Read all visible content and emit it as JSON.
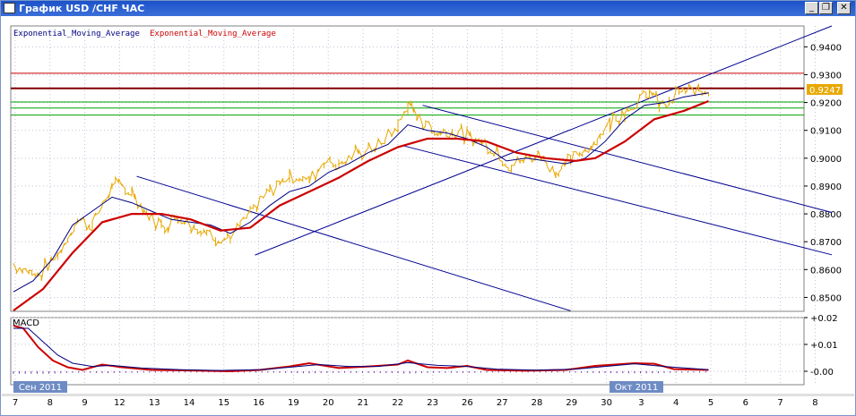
{
  "window": {
    "title": "График USD /CHF ЧАС",
    "buttons": {
      "minimize": "_",
      "restore": "❐",
      "close": "✕"
    }
  },
  "colors": {
    "price": "#e8a800",
    "ema_fast": "#000080",
    "ema_slow": "#cc0000",
    "resistance": "#cc0000",
    "current_line": "#800000",
    "support": "#00a000",
    "trendline": "#000090",
    "macd_histogram": "#7030a0",
    "price_tag_bg": "#e8a800",
    "date_tag_bg": "#6e8cc4"
  },
  "chart_data": [
    {
      "type": "line",
      "title": "",
      "legend": [
        "Exponential_Moving_Average",
        "Exponential_Moving_Average"
      ],
      "legend_placement": "top-left",
      "grid": true,
      "ylim": [
        0.845,
        0.9475
      ],
      "y_ticks": [
        "0.9400",
        "0.9300",
        "0.9200",
        "0.9100",
        "0.9000",
        "0.8900",
        "0.8800",
        "0.8700",
        "0.8600",
        "0.8500"
      ],
      "x_ticks": [
        "7",
        "8",
        "9",
        "12",
        "13",
        "14",
        "15",
        "16",
        "19",
        "20",
        "21",
        "22",
        "23",
        "26",
        "27",
        "28",
        "29",
        "30",
        "3",
        "4",
        "5",
        "6",
        "7",
        "8"
      ],
      "period_labels": [
        "Сен 2011",
        "Окт 2011"
      ],
      "current_price": "0.9247",
      "price": [
        [
          0,
          0.862
        ],
        [
          5,
          0.858
        ],
        [
          9,
          0.865
        ],
        [
          13,
          0.878
        ],
        [
          16,
          0.876
        ],
        [
          20,
          0.89
        ],
        [
          24,
          0.888
        ],
        [
          27,
          0.88
        ],
        [
          30,
          0.876
        ],
        [
          34,
          0.879
        ],
        [
          38,
          0.874
        ],
        [
          41,
          0.872
        ],
        [
          44,
          0.871
        ],
        [
          48,
          0.88
        ],
        [
          52,
          0.888
        ],
        [
          56,
          0.894
        ],
        [
          60,
          0.892
        ],
        [
          63,
          0.899
        ],
        [
          66,
          0.898
        ],
        [
          70,
          0.902
        ],
        [
          74,
          0.9048
        ],
        [
          78,
          0.9112
        ],
        [
          80,
          0.919
        ],
        [
          83,
          0.913
        ],
        [
          86,
          0.909
        ],
        [
          89,
          0.91
        ],
        [
          92,
          0.908
        ],
        [
          95,
          0.906
        ],
        [
          98,
          0.903
        ],
        [
          101,
          0.897
        ],
        [
          104,
          0.9
        ],
        [
          107,
          0.901
        ],
        [
          110,
          0.895
        ],
        [
          113,
          0.899
        ],
        [
          116,
          0.903
        ],
        [
          119,
          0.908
        ],
        [
          121,
          0.913
        ],
        [
          124,
          0.917
        ],
        [
          127,
          0.921
        ],
        [
          129,
          0.9235
        ],
        [
          131,
          0.919
        ],
        [
          133,
          0.92
        ],
        [
          135,
          0.9235
        ],
        [
          137,
          0.924
        ],
        [
          139,
          0.9245
        ],
        [
          141,
          0.9247
        ]
      ],
      "series": [
        {
          "name": "Exponential_Moving_Average",
          "color_key": "ema_fast",
          "points": [
            [
              0,
              0.852
            ],
            [
              4,
              0.856
            ],
            [
              8,
              0.864
            ],
            [
              12,
              0.876
            ],
            [
              16,
              0.881
            ],
            [
              20,
              0.886
            ],
            [
              24,
              0.884
            ],
            [
              28,
              0.881
            ],
            [
              32,
              0.878
            ],
            [
              36,
              0.877
            ],
            [
              40,
              0.876
            ],
            [
              44,
              0.873
            ],
            [
              48,
              0.877
            ],
            [
              52,
              0.883
            ],
            [
              56,
              0.888
            ],
            [
              60,
              0.89
            ],
            [
              64,
              0.895
            ],
            [
              68,
              0.898
            ],
            [
              72,
              0.902
            ],
            [
              76,
              0.905
            ],
            [
              80,
              0.912
            ],
            [
              84,
              0.91
            ],
            [
              88,
              0.909
            ],
            [
              92,
              0.907
            ],
            [
              96,
              0.904
            ],
            [
              100,
              0.899
            ],
            [
              104,
              0.9
            ],
            [
              108,
              0.899
            ],
            [
              112,
              0.898
            ],
            [
              116,
              0.9
            ],
            [
              120,
              0.906
            ],
            [
              124,
              0.914
            ],
            [
              128,
              0.919
            ],
            [
              132,
              0.92
            ],
            [
              136,
              0.922
            ],
            [
              141,
              0.9235
            ]
          ]
        },
        {
          "name": "Exponential_Moving_Average",
          "color_key": "ema_slow",
          "points": [
            [
              0,
              0.8453
            ],
            [
              6,
              0.853
            ],
            [
              12,
              0.866
            ],
            [
              18,
              0.877
            ],
            [
              24,
              0.88
            ],
            [
              30,
              0.88
            ],
            [
              36,
              0.878
            ],
            [
              42,
              0.874
            ],
            [
              48,
              0.875
            ],
            [
              54,
              0.883
            ],
            [
              60,
              0.888
            ],
            [
              66,
              0.893
            ],
            [
              72,
              0.899
            ],
            [
              78,
              0.904
            ],
            [
              84,
              0.907
            ],
            [
              90,
              0.907
            ],
            [
              96,
              0.906
            ],
            [
              102,
              0.902
            ],
            [
              108,
              0.9
            ],
            [
              114,
              0.899
            ],
            [
              118,
              0.9
            ],
            [
              124,
              0.906
            ],
            [
              130,
              0.914
            ],
            [
              136,
              0.917
            ],
            [
              141,
              0.9205
            ]
          ]
        }
      ],
      "horizontal_levels": [
        {
          "value": 0.9305,
          "color_key": "resistance"
        },
        {
          "value": 0.9251,
          "color_key": "current_line"
        },
        {
          "value": 0.9202,
          "color_key": "support"
        },
        {
          "value": 0.918,
          "color_key": "support"
        },
        {
          "value": 0.9155,
          "color_key": "support"
        }
      ],
      "trendlines": [
        {
          "from": [
            25,
            0.8935
          ],
          "to": [
            113,
            0.8452
          ]
        },
        {
          "from": [
            49,
            0.8652
          ],
          "to": [
            166,
            0.9475
          ]
        },
        {
          "from": [
            83,
            0.919
          ],
          "to": [
            166,
            0.8805
          ]
        },
        {
          "from": [
            79,
            0.9045
          ],
          "to": [
            166,
            0.8653
          ]
        }
      ]
    },
    {
      "type": "line",
      "title": "MACD",
      "grid": true,
      "ylim": [
        -0.005,
        0.02
      ],
      "y_ticks": [
        "+0.02",
        "+0.01",
        "-0.00"
      ],
      "macd": [
        [
          0,
          0.017
        ],
        [
          2,
          0.016
        ],
        [
          5,
          0.009
        ],
        [
          8,
          0.004
        ],
        [
          11,
          0.0015
        ],
        [
          14,
          0.0005
        ],
        [
          18,
          0.0025
        ],
        [
          22,
          0.0015
        ],
        [
          28,
          0.0005
        ],
        [
          36,
          0.0003
        ],
        [
          44,
          0.0
        ],
        [
          50,
          0.0005
        ],
        [
          56,
          0.0018
        ],
        [
          60,
          0.003
        ],
        [
          66,
          0.0012
        ],
        [
          72,
          0.0018
        ],
        [
          78,
          0.0025
        ],
        [
          80,
          0.004
        ],
        [
          84,
          0.0015
        ],
        [
          88,
          0.0012
        ],
        [
          92,
          0.002
        ],
        [
          96,
          0.0005
        ],
        [
          104,
          0.0002
        ],
        [
          112,
          0.0005
        ],
        [
          118,
          0.002
        ],
        [
          122,
          0.0025
        ],
        [
          126,
          0.003
        ],
        [
          130,
          0.0028
        ],
        [
          134,
          0.0008
        ],
        [
          141,
          0.0005
        ]
      ],
      "signal": [
        [
          0,
          0.016
        ],
        [
          3,
          0.016
        ],
        [
          6,
          0.011
        ],
        [
          9,
          0.006
        ],
        [
          12,
          0.003
        ],
        [
          16,
          0.0018
        ],
        [
          20,
          0.0022
        ],
        [
          26,
          0.0012
        ],
        [
          34,
          0.0006
        ],
        [
          42,
          0.0003
        ],
        [
          50,
          0.0006
        ],
        [
          56,
          0.0015
        ],
        [
          62,
          0.0025
        ],
        [
          68,
          0.0018
        ],
        [
          74,
          0.0018
        ],
        [
          80,
          0.0032
        ],
        [
          86,
          0.0022
        ],
        [
          92,
          0.0018
        ],
        [
          98,
          0.0008
        ],
        [
          106,
          0.0004
        ],
        [
          114,
          0.0008
        ],
        [
          120,
          0.0018
        ],
        [
          126,
          0.0028
        ],
        [
          132,
          0.0018
        ],
        [
          141,
          0.0006
        ]
      ]
    }
  ]
}
